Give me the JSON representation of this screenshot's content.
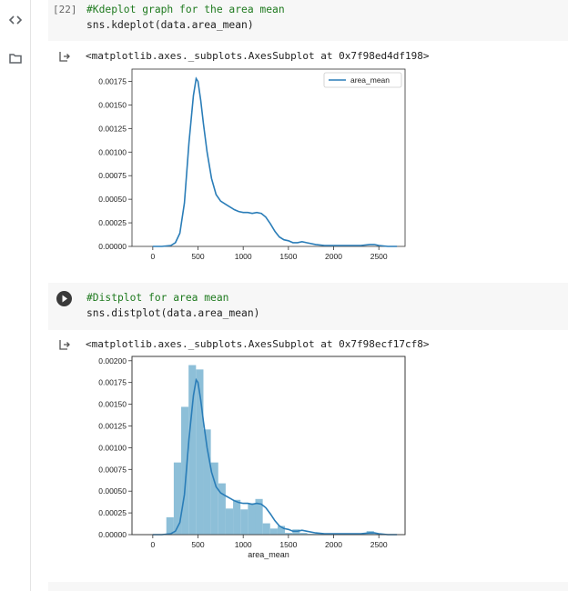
{
  "cells": [
    {
      "exec_count": "[22]",
      "comment": "#Kdeplot graph for the area mean",
      "code": "sns.kdeplot(data.area_mean)",
      "output_repr": "<matplotlib.axes._subplots.AxesSubplot at 0x7f98ed4df198>"
    },
    {
      "exec_count": "",
      "comment": "#Distplot for area mean",
      "code": "sns.distplot(data.area_mean)",
      "output_repr": "<matplotlib.axes._subplots.AxesSubplot at 0x7f98ecf17cf8>"
    }
  ],
  "icons": {
    "code_toggle": "code-brackets-icon",
    "files": "folder-icon",
    "output": "output-arrow-icon",
    "run": "play-icon"
  },
  "colors": {
    "line": "#2a7db8",
    "hist": "#8dbfd8",
    "comment": "#1f7a1f"
  },
  "chart_data": [
    {
      "type": "line",
      "series": [
        {
          "name": "area_mean",
          "x": [
            0,
            100,
            200,
            250,
            300,
            350,
            400,
            450,
            480,
            500,
            530,
            560,
            600,
            650,
            700,
            750,
            800,
            850,
            900,
            950,
            1000,
            1050,
            1100,
            1150,
            1200,
            1250,
            1300,
            1350,
            1400,
            1450,
            1500,
            1550,
            1600,
            1650,
            1700,
            1800,
            1900,
            2000,
            2100,
            2200,
            2300,
            2400,
            2450,
            2500,
            2600,
            2700
          ],
          "y": [
            0,
            0,
            1e-05,
            4e-05,
            0.00014,
            0.00046,
            0.0011,
            0.0016,
            0.00178,
            0.00175,
            0.00155,
            0.0013,
            0.001,
            0.00072,
            0.00055,
            0.00048,
            0.00045,
            0.00042,
            0.00039,
            0.00037,
            0.00036,
            0.00036,
            0.00035,
            0.00036,
            0.00035,
            0.00031,
            0.00024,
            0.00016,
            0.0001,
            7e-05,
            6e-05,
            4e-05,
            4e-05,
            5e-05,
            4e-05,
            2e-05,
            1e-05,
            1e-05,
            1e-05,
            1e-05,
            1e-05,
            2e-05,
            2e-05,
            1e-05,
            0,
            0
          ]
        }
      ],
      "xticks": [
        0,
        500,
        1000,
        1500,
        2000,
        2500
      ],
      "xtick_labels": [
        "0",
        "500",
        "1000",
        "1500",
        "2000",
        "2500"
      ],
      "yticks": [
        0,
        0.00025,
        0.0005,
        0.00075,
        0.001,
        0.00125,
        0.0015,
        0.00175
      ],
      "ytick_labels": [
        "0.00000",
        "0.00025",
        "0.00050",
        "0.00075",
        "0.00100",
        "0.00125",
        "0.00150",
        "0.00175"
      ],
      "xlim": [
        -230,
        2790
      ],
      "ylim": [
        0,
        0.00188
      ],
      "legend": "top-right",
      "grid": false,
      "xlabel": ""
    },
    {
      "type": "bar",
      "bins_left": [
        150,
        232,
        314,
        396,
        478,
        560,
        642,
        724,
        806,
        888,
        970,
        1052,
        1134,
        1216,
        1298,
        1380,
        1462,
        1544,
        1626,
        1708,
        1790,
        1872,
        1954,
        2036,
        2118,
        2200,
        2282,
        2364,
        2446
      ],
      "bin_width": 82,
      "values": [
        0.0002,
        0.00083,
        0.00147,
        0.00195,
        0.0019,
        0.00121,
        0.00083,
        0.00059,
        0.0003,
        0.0004,
        0.00029,
        0.00036,
        0.00041,
        0.00013,
        7e-05,
        0.0001,
        2e-05,
        6e-05,
        2e-05,
        1e-05,
        1e-05,
        1e-05,
        1e-05,
        1e-05,
        1e-05,
        1e-05,
        1e-05,
        4e-05,
        1e-05
      ],
      "kde_x": [
        0,
        100,
        200,
        250,
        300,
        350,
        400,
        450,
        480,
        500,
        530,
        560,
        600,
        650,
        700,
        750,
        800,
        850,
        900,
        950,
        1000,
        1050,
        1100,
        1150,
        1200,
        1250,
        1300,
        1350,
        1400,
        1450,
        1500,
        1550,
        1600,
        1650,
        1700,
        1800,
        1900,
        2000,
        2100,
        2200,
        2300,
        2400,
        2450,
        2500,
        2600,
        2700
      ],
      "kde_y": [
        0,
        0,
        1e-05,
        4e-05,
        0.00014,
        0.00046,
        0.0011,
        0.0016,
        0.00178,
        0.00175,
        0.00155,
        0.0013,
        0.001,
        0.00072,
        0.00055,
        0.00048,
        0.00045,
        0.00042,
        0.00039,
        0.00037,
        0.00036,
        0.00036,
        0.00035,
        0.00036,
        0.00035,
        0.00031,
        0.00024,
        0.00016,
        0.0001,
        7e-05,
        6e-05,
        4e-05,
        4e-05,
        5e-05,
        4e-05,
        2e-05,
        1e-05,
        1e-05,
        1e-05,
        1e-05,
        1e-05,
        2e-05,
        2e-05,
        1e-05,
        0,
        0
      ],
      "xticks": [
        0,
        500,
        1000,
        1500,
        2000,
        2500
      ],
      "xtick_labels": [
        "0",
        "500",
        "1000",
        "1500",
        "2000",
        "2500"
      ],
      "yticks": [
        0,
        0.00025,
        0.0005,
        0.00075,
        0.001,
        0.00125,
        0.0015,
        0.00175,
        0.002
      ],
      "ytick_labels": [
        "0.00000",
        "0.00025",
        "0.00050",
        "0.00075",
        "0.00100",
        "0.00125",
        "0.00150",
        "0.00175",
        "0.00200"
      ],
      "xlim": [
        -230,
        2790
      ],
      "ylim": [
        0,
        0.00205
      ],
      "xlabel": "area_mean",
      "grid": false
    }
  ]
}
